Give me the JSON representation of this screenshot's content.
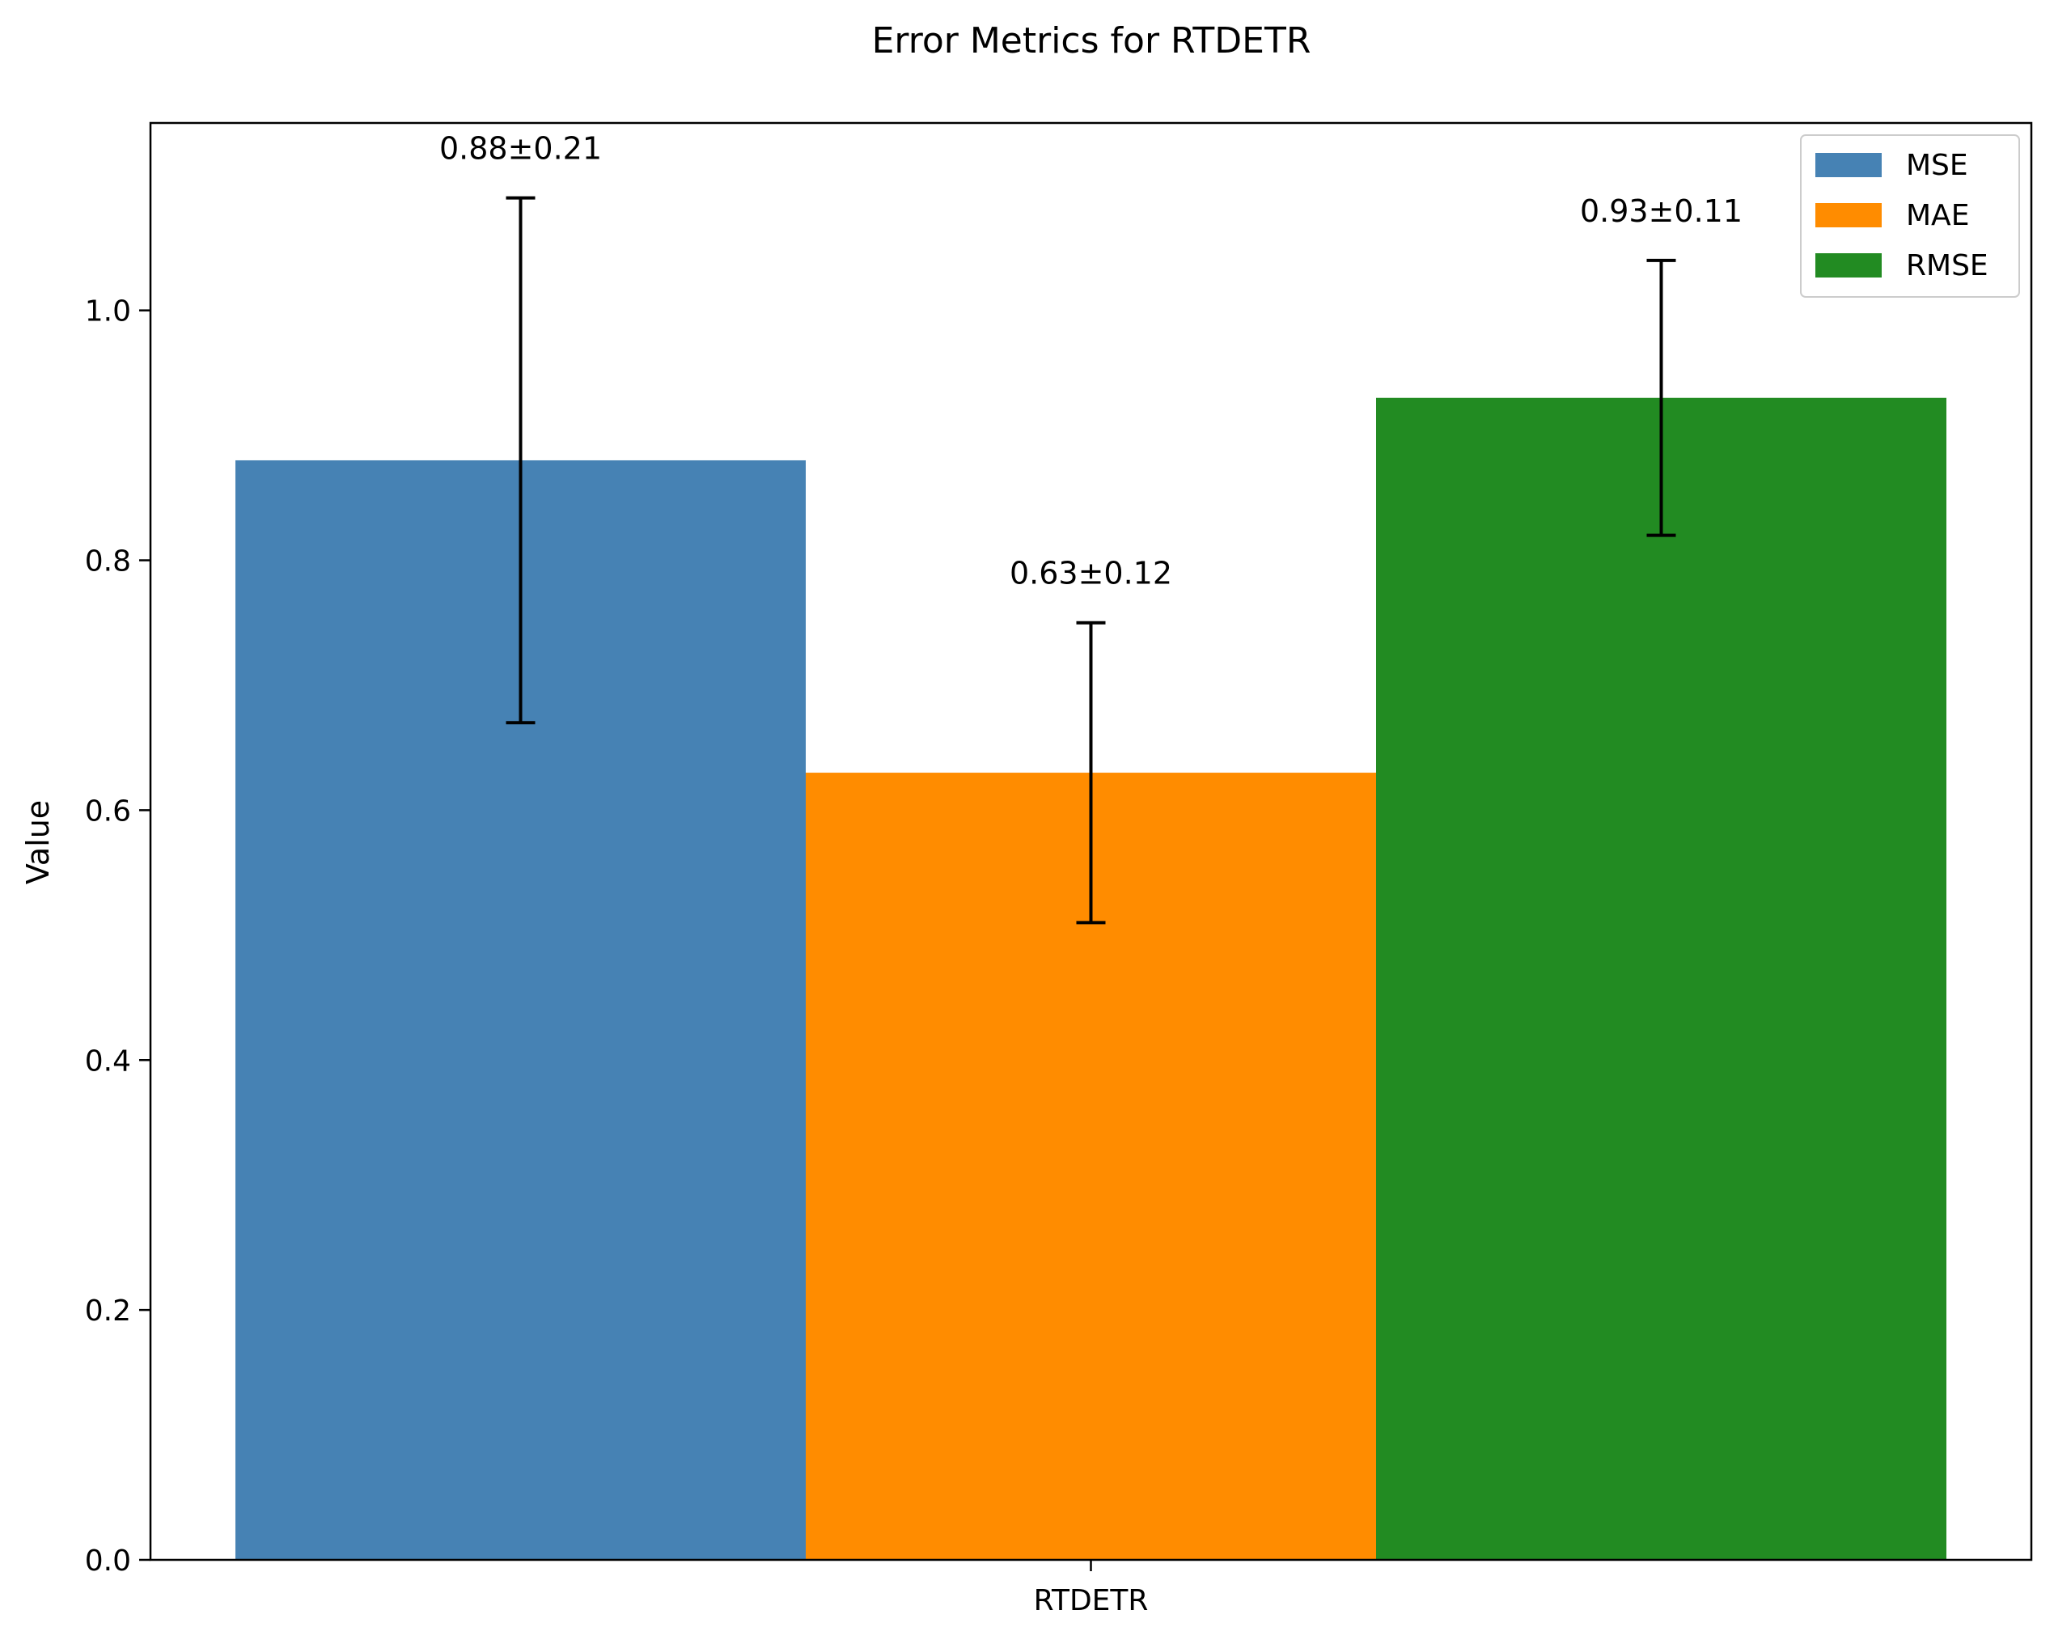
{
  "chart_data": {
    "type": "bar",
    "title": "Error Metrics for RTDETR",
    "xlabel": "",
    "ylabel": "Value",
    "categories": [
      "RTDETR"
    ],
    "ylim": [
      0,
      1.15
    ],
    "yticks": [
      "0.0",
      "0.2",
      "0.4",
      "0.6",
      "0.8",
      "1.0"
    ],
    "grid": false,
    "legend_position": "top-right",
    "series": [
      {
        "name": "MSE",
        "values": [
          0.88
        ],
        "error": [
          0.21
        ],
        "label": "0.88±0.21",
        "color": "#4682b4"
      },
      {
        "name": "MAE",
        "values": [
          0.63
        ],
        "error": [
          0.12
        ],
        "label": "0.63±0.12",
        "color": "#ff8c00"
      },
      {
        "name": "RMSE",
        "values": [
          0.93
        ],
        "error": [
          0.11
        ],
        "label": "0.93±0.11",
        "color": "#228b22"
      }
    ]
  }
}
